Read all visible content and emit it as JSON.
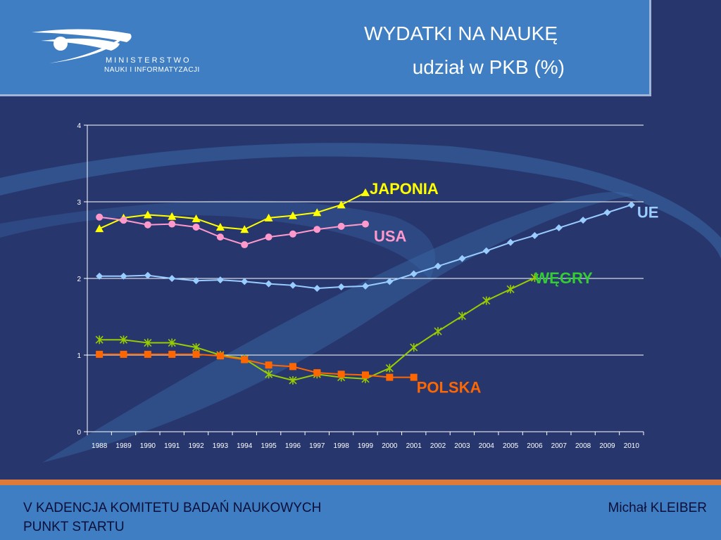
{
  "header": {
    "logo_line1": "MINISTERSTWO",
    "logo_line2": "NAUKI I INFORMATYZACJI",
    "title_line1": "WYDATKI NA NAUKĘ",
    "title_line2": "udział w PKB (%)"
  },
  "footer": {
    "left_line1": "V KADENCJA KOMITETU BADAŃ NAUKOWYCH",
    "left_line2": "PUNKT STARTU",
    "right": "Michał KLEIBER"
  },
  "chart_data": {
    "type": "line",
    "title": "",
    "xlabel": "",
    "ylabel": "",
    "ylim": [
      0,
      4
    ],
    "yticks": [
      0,
      1,
      2,
      3,
      4
    ],
    "grid": true,
    "categories": [
      "1988",
      "1989",
      "1990",
      "1991",
      "1992",
      "1993",
      "1994",
      "1995",
      "1996",
      "1997",
      "1998",
      "1999",
      "2000",
      "2001",
      "2002",
      "2003",
      "2004",
      "2005",
      "2006",
      "2007",
      "2008",
      "2009",
      "2010"
    ],
    "series": [
      {
        "name": "JAPONIA",
        "color": "#ffff00",
        "label_color": "#ffff00",
        "marker": "triangle",
        "values": [
          2.65,
          2.79,
          2.83,
          2.81,
          2.78,
          2.67,
          2.64,
          2.79,
          2.82,
          2.86,
          2.96,
          3.12,
          null,
          null,
          null,
          null,
          null,
          null,
          null,
          null,
          null,
          null,
          null
        ]
      },
      {
        "name": "USA",
        "color": "#ff99cc",
        "label_color": "#ff99cc",
        "marker": "circle",
        "values": [
          2.8,
          2.76,
          2.7,
          2.71,
          2.67,
          2.54,
          2.44,
          2.54,
          2.58,
          2.64,
          2.68,
          2.71,
          null,
          null,
          null,
          null,
          null,
          null,
          null,
          null,
          null,
          null,
          null
        ]
      },
      {
        "name": "UE",
        "color": "#99ccff",
        "label_color": "#99ccff",
        "marker": "diamond",
        "values": [
          2.03,
          2.03,
          2.04,
          2.0,
          1.97,
          1.98,
          1.96,
          1.93,
          1.91,
          1.87,
          1.89,
          1.9,
          1.96,
          2.06,
          2.16,
          2.26,
          2.36,
          2.47,
          2.56,
          2.66,
          2.76,
          2.86,
          2.96
        ]
      },
      {
        "name": "WĘGRY",
        "color": "#99cc00",
        "label_color": "#33cc33",
        "marker": "star",
        "values": [
          1.2,
          1.2,
          1.16,
          1.16,
          1.1,
          1.0,
          0.95,
          0.75,
          0.67,
          0.75,
          0.71,
          0.69,
          0.83,
          1.1,
          1.31,
          1.51,
          1.71,
          1.86,
          2.01,
          null,
          null,
          null,
          null
        ]
      },
      {
        "name": "POLSKA",
        "color": "#ff6600",
        "label_color": "#ff6600",
        "marker": "square",
        "values": [
          1.01,
          1.01,
          1.01,
          1.01,
          1.01,
          0.99,
          0.94,
          0.87,
          0.85,
          0.77,
          0.75,
          0.74,
          0.71,
          0.71,
          null,
          null,
          null,
          null,
          null,
          null,
          null,
          null,
          null
        ]
      }
    ]
  }
}
